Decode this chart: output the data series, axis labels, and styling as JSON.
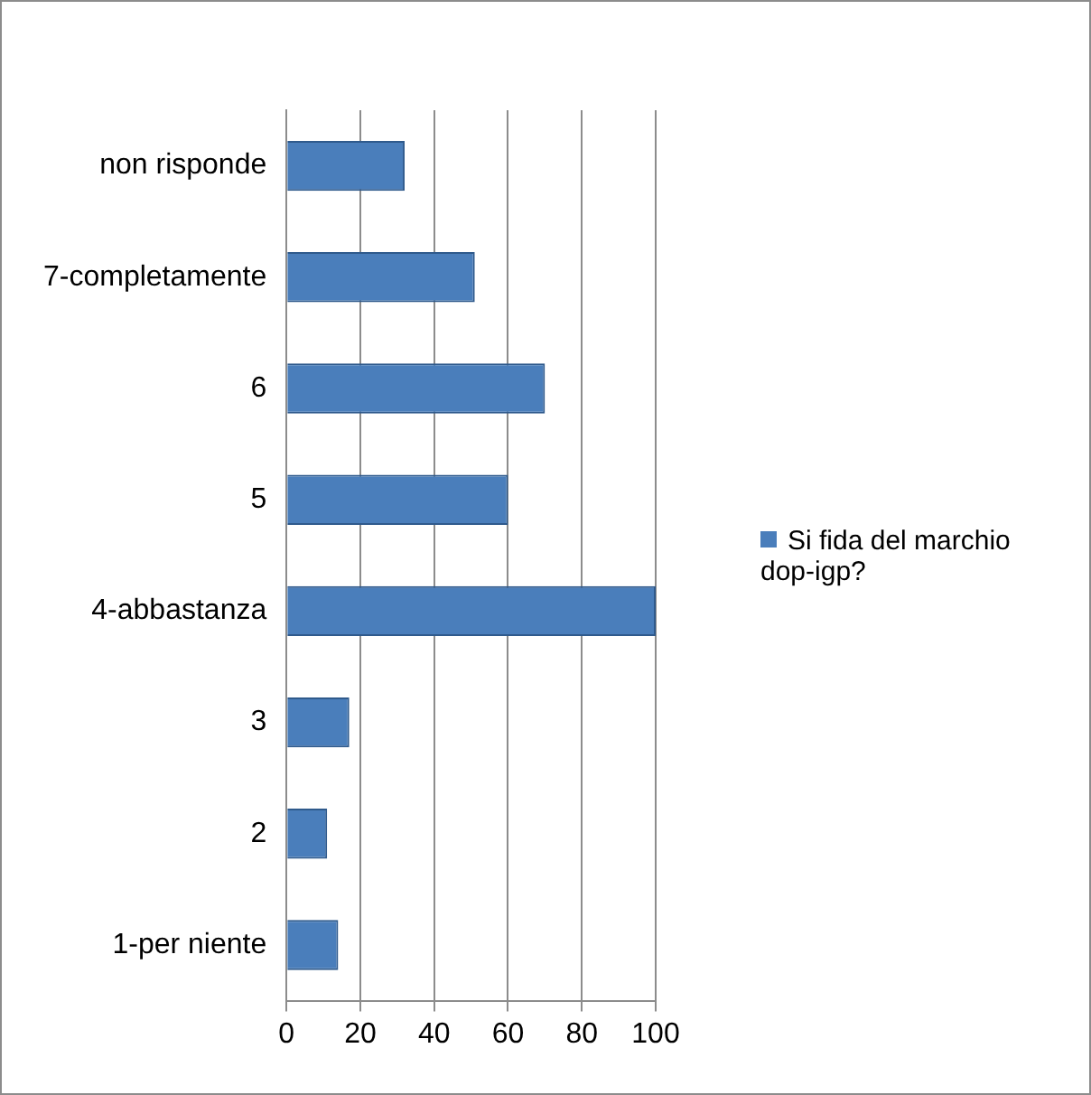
{
  "chart_data": {
    "type": "bar",
    "orientation": "horizontal",
    "categories": [
      "non risponde",
      "7-completamente",
      "6",
      "5",
      "4-abbastanza",
      "3",
      "2",
      "1-per niente"
    ],
    "series": [
      {
        "name": "Si fida del marchio dop-igp?",
        "color": "#4a7ebb",
        "values": [
          32,
          51,
          70,
          60,
          100,
          17,
          11,
          14
        ]
      }
    ],
    "xlim": [
      0,
      100
    ],
    "xticks": [
      0,
      20,
      40,
      60,
      80,
      100
    ],
    "grid": "x",
    "legend": "right"
  }
}
